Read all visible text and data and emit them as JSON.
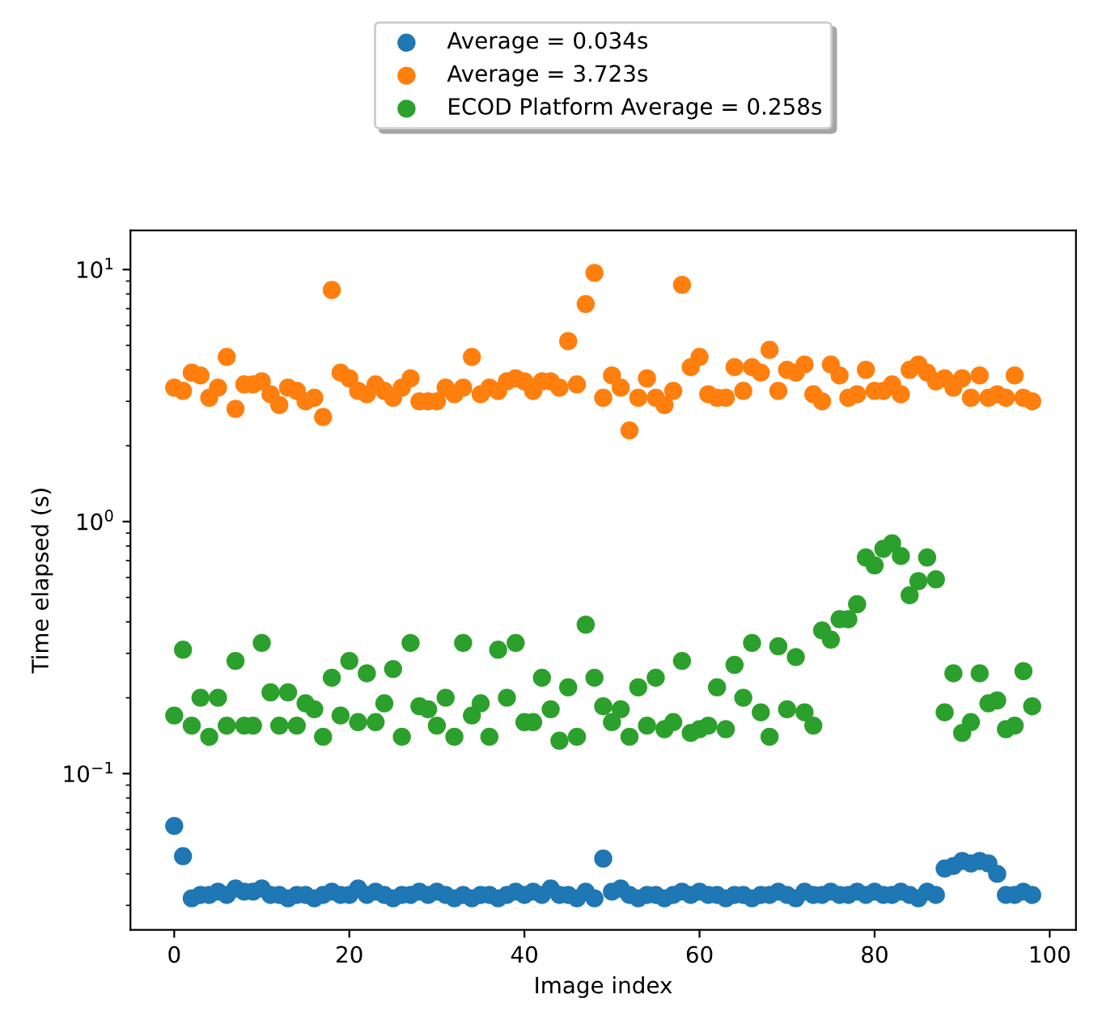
{
  "chart_data": {
    "type": "scatter",
    "xlabel": "Image index",
    "ylabel": "Time elapsed (s)",
    "log": "y",
    "legend": "top",
    "marker": "circle",
    "grid": false,
    "x": [
      0,
      1,
      2,
      3,
      4,
      5,
      6,
      7,
      8,
      9,
      10,
      11,
      12,
      13,
      14,
      15,
      16,
      17,
      18,
      19,
      20,
      21,
      22,
      23,
      24,
      25,
      26,
      27,
      28,
      29,
      30,
      31,
      32,
      33,
      34,
      35,
      36,
      37,
      38,
      39,
      40,
      41,
      42,
      43,
      44,
      45,
      46,
      47,
      48,
      49,
      50,
      51,
      52,
      53,
      54,
      55,
      56,
      57,
      58,
      59,
      60,
      61,
      62,
      63,
      64,
      65,
      66,
      67,
      68,
      69,
      70,
      71,
      72,
      73,
      74,
      75,
      76,
      77,
      78,
      79,
      80,
      81,
      82,
      83,
      84,
      85,
      86,
      87,
      88,
      89,
      90,
      91,
      92,
      93,
      94,
      95,
      96,
      97,
      98
    ],
    "xlim": [
      -5,
      103
    ],
    "xticks": [
      0,
      20,
      40,
      60,
      80,
      100
    ],
    "ylim": [
      0.024,
      14.3
    ],
    "yticks": [
      {
        "value": 0.1,
        "label": "10$^{−1}$"
      },
      {
        "value": 1,
        "label": "10$^{0}$"
      },
      {
        "value": 10,
        "label": "10$^{1}$"
      }
    ],
    "series": [
      {
        "name": "Average = 0.034s",
        "color": "#1f77b4",
        "values": [
          0.062,
          0.047,
          0.032,
          0.033,
          0.033,
          0.034,
          0.033,
          0.035,
          0.034,
          0.034,
          0.035,
          0.033,
          0.033,
          0.032,
          0.033,
          0.033,
          0.032,
          0.033,
          0.034,
          0.033,
          0.033,
          0.035,
          0.033,
          0.034,
          0.033,
          0.032,
          0.033,
          0.033,
          0.034,
          0.033,
          0.034,
          0.033,
          0.032,
          0.033,
          0.032,
          0.033,
          0.033,
          0.032,
          0.033,
          0.034,
          0.033,
          0.034,
          0.033,
          0.035,
          0.033,
          0.033,
          0.032,
          0.034,
          0.032,
          0.046,
          0.034,
          0.035,
          0.033,
          0.032,
          0.033,
          0.033,
          0.032,
          0.033,
          0.034,
          0.033,
          0.034,
          0.033,
          0.033,
          0.032,
          0.033,
          0.033,
          0.032,
          0.033,
          0.033,
          0.034,
          0.033,
          0.032,
          0.034,
          0.033,
          0.033,
          0.034,
          0.033,
          0.033,
          0.034,
          0.033,
          0.034,
          0.033,
          0.033,
          0.034,
          0.033,
          0.032,
          0.034,
          0.033,
          0.042,
          0.043,
          0.045,
          0.044,
          0.045,
          0.044,
          0.04,
          0.033,
          0.033,
          0.034,
          0.033
        ]
      },
      {
        "name": "Average = 3.723s",
        "color": "#ff7f0e",
        "values": [
          3.4,
          3.3,
          3.9,
          3.8,
          3.1,
          3.4,
          4.5,
          2.8,
          3.5,
          3.5,
          3.6,
          3.2,
          2.9,
          3.4,
          3.3,
          3.0,
          3.1,
          2.6,
          8.3,
          3.9,
          3.7,
          3.3,
          3.2,
          3.5,
          3.3,
          3.1,
          3.4,
          3.7,
          3.0,
          3.0,
          3.0,
          3.4,
          3.2,
          3.4,
          4.5,
          3.2,
          3.4,
          3.3,
          3.6,
          3.7,
          3.6,
          3.3,
          3.6,
          3.6,
          3.4,
          5.2,
          3.5,
          7.3,
          9.7,
          3.1,
          3.8,
          3.4,
          2.3,
          3.1,
          3.7,
          3.1,
          2.9,
          3.3,
          8.7,
          4.1,
          4.5,
          3.2,
          3.1,
          3.1,
          4.1,
          3.3,
          4.1,
          3.9,
          4.8,
          3.3,
          4.0,
          3.9,
          4.2,
          3.2,
          3.0,
          4.2,
          3.8,
          3.1,
          3.2,
          4.0,
          3.3,
          3.3,
          3.5,
          3.2,
          4.0,
          4.2,
          3.9,
          3.6,
          3.7,
          3.4,
          3.7,
          3.1,
          3.8,
          3.1,
          3.2,
          3.1,
          3.8,
          3.1,
          3.0
        ]
      },
      {
        "name": "ECOD Platform Average = 0.258s",
        "color": "#2ca02c",
        "values": [
          0.17,
          0.31,
          0.155,
          0.2,
          0.14,
          0.2,
          0.155,
          0.28,
          0.155,
          0.155,
          0.33,
          0.21,
          0.155,
          0.21,
          0.155,
          0.19,
          0.18,
          0.14,
          0.24,
          0.17,
          0.28,
          0.16,
          0.25,
          0.16,
          0.19,
          0.26,
          0.14,
          0.33,
          0.185,
          0.18,
          0.155,
          0.2,
          0.14,
          0.33,
          0.17,
          0.19,
          0.14,
          0.31,
          0.2,
          0.33,
          0.16,
          0.16,
          0.24,
          0.18,
          0.135,
          0.22,
          0.14,
          0.39,
          0.24,
          0.185,
          0.16,
          0.18,
          0.14,
          0.22,
          0.155,
          0.24,
          0.15,
          0.16,
          0.28,
          0.145,
          0.15,
          0.155,
          0.22,
          0.15,
          0.27,
          0.2,
          0.33,
          0.175,
          0.14,
          0.32,
          0.18,
          0.29,
          0.175,
          0.155,
          0.37,
          0.34,
          0.41,
          0.41,
          0.47,
          0.72,
          0.67,
          0.78,
          0.82,
          0.73,
          0.51,
          0.58,
          0.72,
          0.59,
          0.175,
          0.25,
          0.145,
          0.16,
          0.25,
          0.19,
          0.195,
          0.15,
          0.155,
          0.255,
          0.185
        ]
      }
    ]
  }
}
